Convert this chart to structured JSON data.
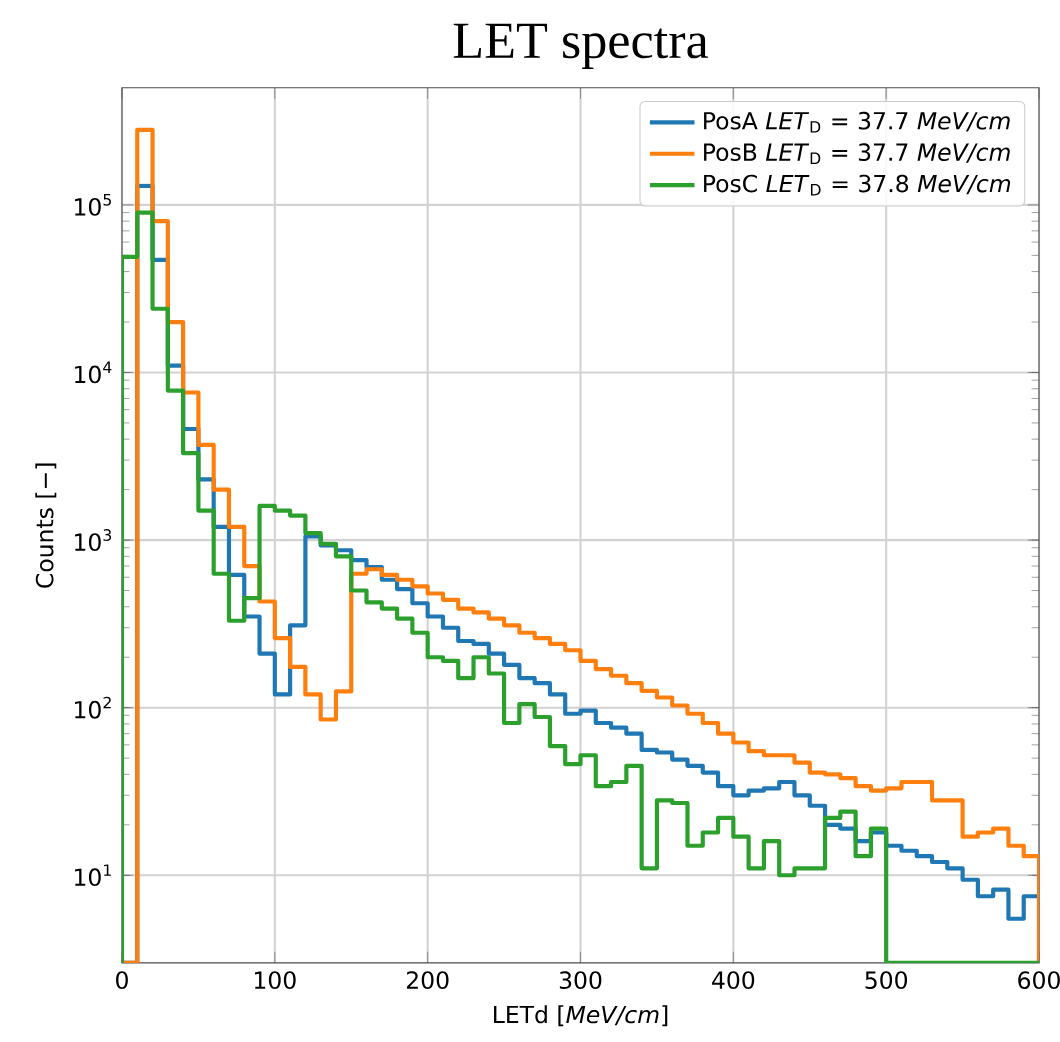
{
  "chart_data": {
    "type": "histogram",
    "title": "LET spectra",
    "xlabel": "LETd [*MeV/cm*]",
    "ylabel": "Counts [−]",
    "bins": [
      0,
      10,
      20,
      30,
      40,
      50,
      60,
      70,
      80,
      90,
      100,
      110,
      120,
      130,
      140,
      150,
      160,
      170,
      180,
      190,
      200,
      210,
      220,
      230,
      240,
      250,
      260,
      270,
      280,
      290,
      300,
      310,
      320,
      330,
      340,
      350,
      360,
      370,
      380,
      390,
      400,
      410,
      420,
      430,
      440,
      450,
      460,
      470,
      480,
      490,
      500,
      510,
      520,
      530,
      540,
      550,
      560,
      570,
      580,
      590,
      600
    ],
    "series": [
      {
        "name": "PosA *LET*$_{D}$ = 37.7 *MeV/cm*",
        "color": "#1f77b4",
        "values": [
          null,
          130000,
          47000,
          11000,
          4600,
          2300,
          1200,
          620,
          350,
          210,
          120,
          310,
          1050,
          930,
          870,
          760,
          690,
          580,
          510,
          420,
          350,
          300,
          250,
          240,
          210,
          180,
          150,
          140,
          120,
          92,
          96,
          81,
          76,
          70,
          56,
          54,
          49,
          45,
          41,
          34,
          30,
          32,
          33,
          36,
          30,
          26,
          20,
          19,
          16,
          18,
          15,
          14,
          13,
          12,
          11,
          9.4,
          7.5,
          8.2,
          5.5,
          7.5
        ]
      },
      {
        "name": "PosB *LET*$_{D}$ = 37.7 *MeV/cm*",
        "color": "#ff7f0e",
        "values": [
          null,
          280000,
          80000,
          20000,
          7600,
          3700,
          2000,
          1200,
          700,
          430,
          260,
          175,
          120,
          85,
          125,
          630,
          670,
          620,
          580,
          530,
          480,
          440,
          390,
          370,
          340,
          310,
          280,
          260,
          240,
          220,
          190,
          170,
          155,
          140,
          126,
          115,
          103,
          92,
          81,
          70,
          62,
          55,
          52,
          52,
          47,
          41,
          40,
          38,
          34,
          32,
          33,
          36,
          36,
          28,
          28,
          17,
          18,
          19,
          15,
          13
        ]
      },
      {
        "name": "PosC *LET*$_{D}$ = 37.8 *MeV/cm*",
        "color": "#2ca02c",
        "values": [
          49000,
          90000,
          24000,
          7800,
          3300,
          1500,
          630,
          330,
          450,
          1600,
          1500,
          1400,
          1100,
          950,
          800,
          500,
          425,
          390,
          340,
          280,
          200,
          190,
          150,
          200,
          160,
          81,
          105,
          88,
          59,
          46,
          52,
          34,
          36,
          45,
          11,
          28,
          27,
          15,
          18,
          22,
          17,
          11,
          16,
          10,
          11,
          11,
          22,
          24,
          13,
          19,
          null,
          null,
          null,
          null,
          null,
          null,
          null,
          null,
          null,
          null
        ]
      }
    ],
    "xlim": [
      0,
      600
    ],
    "xticks": [
      0,
      100,
      200,
      300,
      400,
      500,
      600
    ],
    "ylim": [
      3,
      500000
    ],
    "log": true,
    "yticks": [
      {
        "value": 10,
        "label": "10$^{1}$"
      },
      {
        "value": 100,
        "label": "10$^{2}$"
      },
      {
        "value": 1000,
        "label": "10$^{3}$"
      },
      {
        "value": 10000,
        "label": "10$^{4}$"
      },
      {
        "value": 100000,
        "label": "10$^{5}$"
      }
    ],
    "grid": true,
    "legend": "top right"
  }
}
